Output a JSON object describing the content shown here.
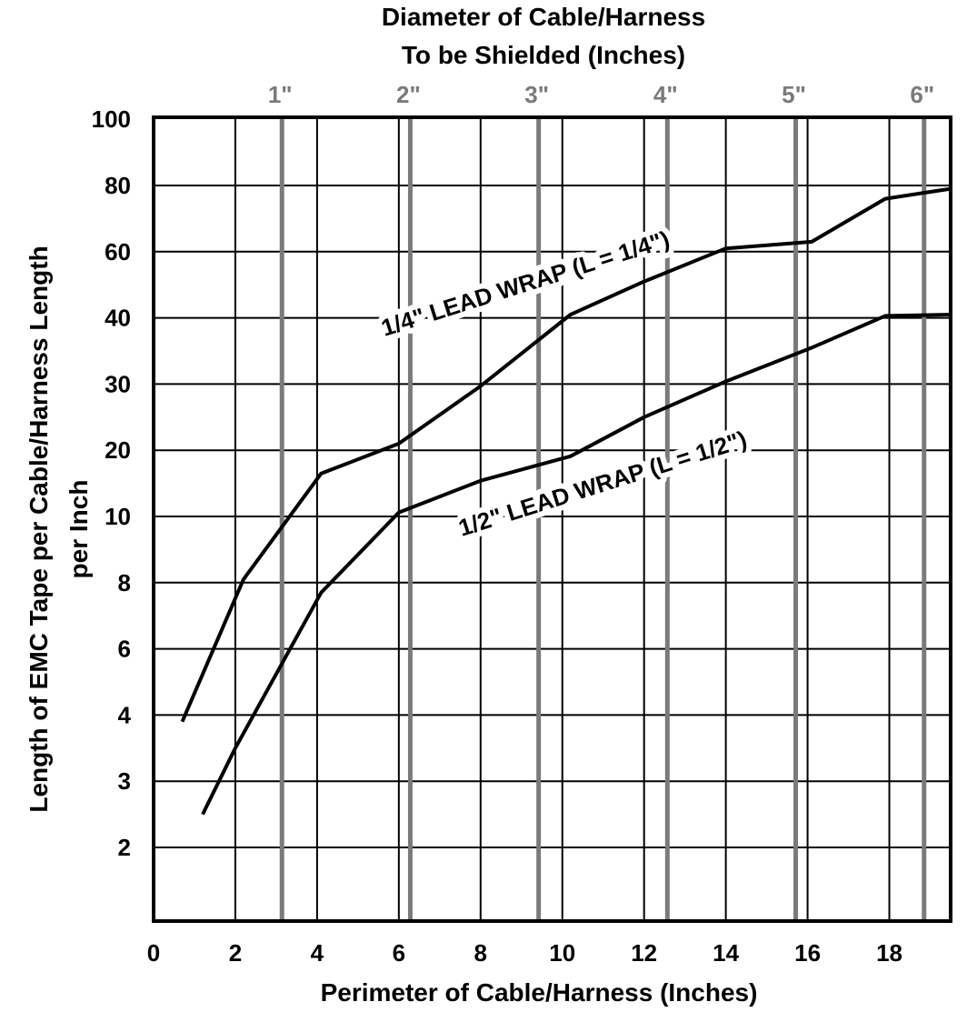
{
  "chart_data": {
    "type": "line",
    "title": "",
    "xlabel": "Perimeter of Cable/Harness (Inches)",
    "ylabel": "Length of EMC Tape per Cable/Harness Length per Inch",
    "x2label": "Diameter of Cable/Harness To be Shielded (Inches)",
    "x2label_lines": [
      "Diameter of Cable/Harness",
      "To be Shielded (Inches)"
    ],
    "ylabel_lines": [
      "Length of EMC Tape per Cable/Harness Length",
      "per Inch"
    ],
    "xlim": [
      0,
      19.5
    ],
    "x_ticks": [
      0,
      2,
      4,
      6,
      8,
      10,
      12,
      14,
      16,
      18
    ],
    "x_tick_labels": [
      "0",
      "2",
      "4",
      "6",
      "8",
      "10",
      "12",
      "14",
      "16",
      "18"
    ],
    "y_ticks": [
      2,
      3,
      4,
      6,
      8,
      10,
      20,
      30,
      40,
      60,
      80,
      100
    ],
    "y_tick_labels": [
      "2",
      "3",
      "4",
      "6",
      "8",
      "10",
      "20",
      "30",
      "40",
      "60",
      "80",
      "100"
    ],
    "y_scale": "nonlinear (grid rows at 2, 3, 4, 6, 8, 10, 20, 30, 40, 60, 80, 100)",
    "y_bottom": 1,
    "diameter_ticks": [
      {
        "label": "1\"",
        "perimeter": 3.14
      },
      {
        "label": "2\"",
        "perimeter": 6.28
      },
      {
        "label": "3\"",
        "perimeter": 9.42
      },
      {
        "label": "4\"",
        "perimeter": 12.57
      },
      {
        "label": "5\"",
        "perimeter": 15.71
      },
      {
        "label": "6\"",
        "perimeter": 18.85
      }
    ],
    "grid": true,
    "series": [
      {
        "name": "1/4\" LEAD WRAP (L = 1/4\")",
        "x": [
          0.7,
          2.2,
          4.1,
          6.0,
          8.0,
          10.2,
          12.0,
          14.0,
          16.1,
          17.9,
          19.5
        ],
        "y": [
          3.9,
          8.1,
          16.5,
          21,
          29.7,
          41,
          51,
          61,
          63,
          76,
          79
        ]
      },
      {
        "name": "1/2\" LEAD WRAP (L = 1/2\")",
        "x": [
          1.2,
          2.0,
          4.1,
          6.0,
          8.0,
          10.2,
          12.0,
          14.0,
          16.1,
          17.9,
          19.5
        ],
        "y": [
          2.5,
          3.5,
          7.7,
          10.6,
          15.4,
          19.1,
          25,
          30.4,
          35.5,
          40.6,
          41
        ]
      }
    ],
    "curve_labels": [
      "1/4\" LEAD WRAP (L = 1/4\")",
      "1/2\" LEAD WRAP (L = 1/2\")"
    ],
    "colors": {
      "grid": "#000000",
      "diameter_lines": "#7a7a7a",
      "curves": "#000000"
    }
  }
}
